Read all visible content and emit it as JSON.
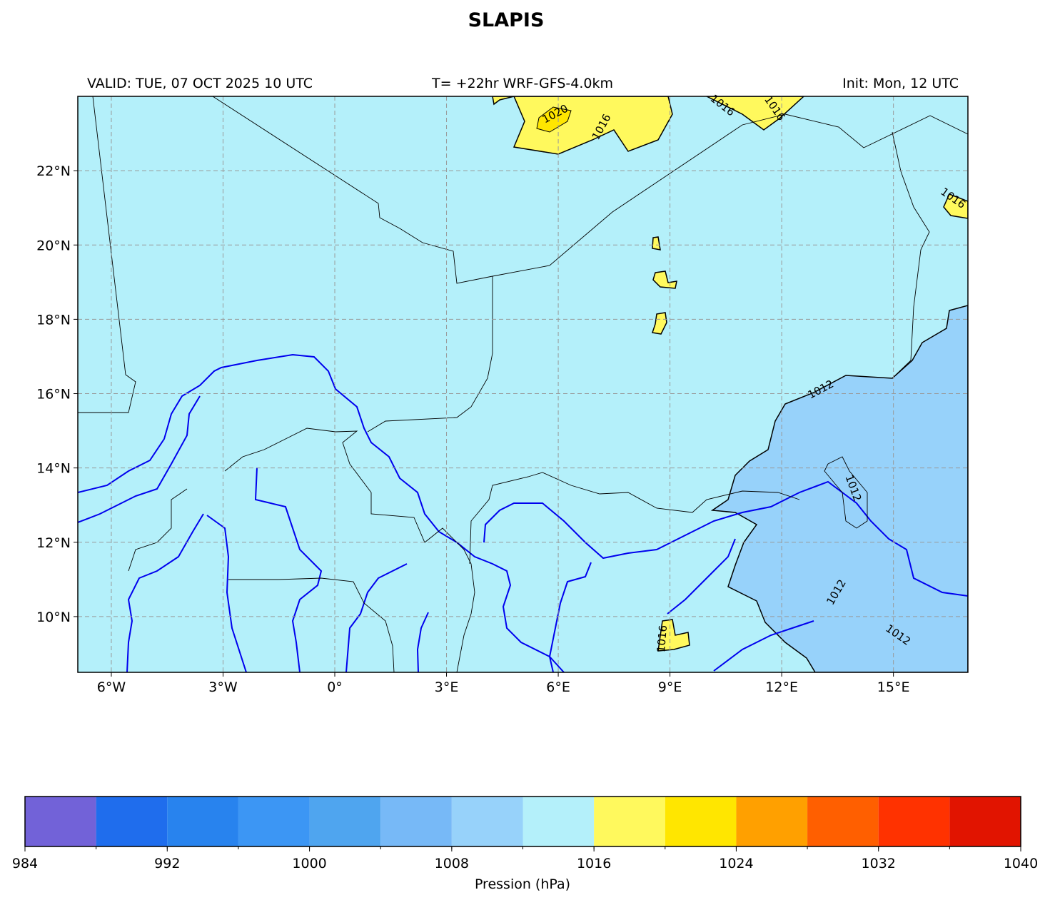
{
  "map": {
    "title": "SLAPIS",
    "valid": "VALID: TUE, 07 OCT 2025 10 UTC",
    "forecast": "T= +22hr WRF-GFS-4.0km",
    "init": "Init: Mon, 12 UTC",
    "xlim": [
      -6.9,
      17.0
    ],
    "ylim": [
      8.5,
      24.0
    ],
    "xticks": [
      {
        "value": -6,
        "label": "6°W"
      },
      {
        "value": -3,
        "label": "3°W"
      },
      {
        "value": 0,
        "label": "0°"
      },
      {
        "value": 3,
        "label": "3°E"
      },
      {
        "value": 6,
        "label": "6°E"
      },
      {
        "value": 9,
        "label": "9°E"
      },
      {
        "value": 12,
        "label": "12°E"
      },
      {
        "value": 15,
        "label": "15°E"
      }
    ],
    "yticks": [
      {
        "value": 10,
        "label": "10°N"
      },
      {
        "value": 12,
        "label": "12°N"
      },
      {
        "value": 14,
        "label": "14°N"
      },
      {
        "value": 16,
        "label": "16°N"
      },
      {
        "value": 18,
        "label": "18°N"
      },
      {
        "value": 20,
        "label": "20°N"
      },
      {
        "value": 22,
        "label": "22°N"
      }
    ],
    "contour_labels": [
      "1020",
      "1016",
      "1016",
      "1016",
      "1016",
      "1012",
      "1012",
      "1012",
      "1016",
      "1012"
    ]
  },
  "colorbar": {
    "label": "Pression (hPa)",
    "levels": [
      984,
      988,
      992,
      996,
      1000,
      1004,
      1008,
      1012,
      1016,
      1020,
      1024,
      1028,
      1032,
      1036,
      1040
    ],
    "colors": [
      "#7262d8",
      "#1f6ded",
      "#2883ee",
      "#3c96f4",
      "#4fa5ef",
      "#77b9f7",
      "#97d2fa",
      "#b4f0fa",
      "#fff95d",
      "#ffe600",
      "#ffa000",
      "#ff5f00",
      "#ff3200",
      "#e11400"
    ],
    "ticks": [
      984,
      992,
      1000,
      1008,
      1016,
      1024,
      1032,
      1040
    ]
  }
}
